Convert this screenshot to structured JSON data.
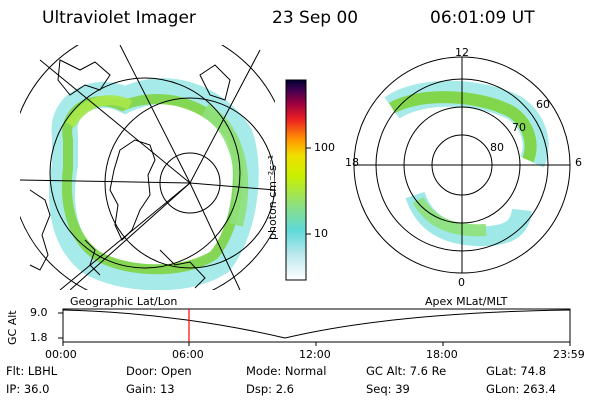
{
  "header": {
    "title": "Ultraviolet Imager",
    "date": "23 Sep 00",
    "time": "06:01:09 UT"
  },
  "colorbar": {
    "unit_label": "photon cm⁻²s⁻¹",
    "ticks": [
      "100",
      "10"
    ]
  },
  "polar_plot": {
    "mlt_labels": [
      "12",
      "18",
      "6",
      "0"
    ],
    "lat_labels": [
      "60",
      "70",
      "80"
    ]
  },
  "timeline": {
    "left_title": "Geographic Lat/Lon",
    "right_title": "Apex MLat/MLT",
    "axis_label": "GC Alt",
    "y_ticks": [
      "9.0",
      "1.8"
    ],
    "x_ticks": [
      "00:00",
      "06:00",
      "12:00",
      "18:00",
      "23:59"
    ],
    "marker_color": "#ff0000"
  },
  "info": {
    "row1": [
      {
        "label": "Flt:",
        "value": "LBHL"
      },
      {
        "label": "Door:",
        "value": "Open"
      },
      {
        "label": "Mode:",
        "value": "Normal"
      },
      {
        "label": "GC Alt:",
        "value": "7.6 Re"
      },
      {
        "label": "GLat:",
        "value": "74.8"
      }
    ],
    "row2": [
      {
        "label": "IP:",
        "value": "36.0"
      },
      {
        "label": "Gain:",
        "value": "13"
      },
      {
        "label": "Dsp:",
        "value": "2.6"
      },
      {
        "label": "Seq:",
        "value": "39"
      },
      {
        "label": "GLon:",
        "value": "263.4"
      }
    ]
  },
  "colors": {
    "aurora_green": "#7ed43a",
    "aurora_cyan": "#5fd8d8",
    "aurora_pale": "#c8ecec"
  }
}
